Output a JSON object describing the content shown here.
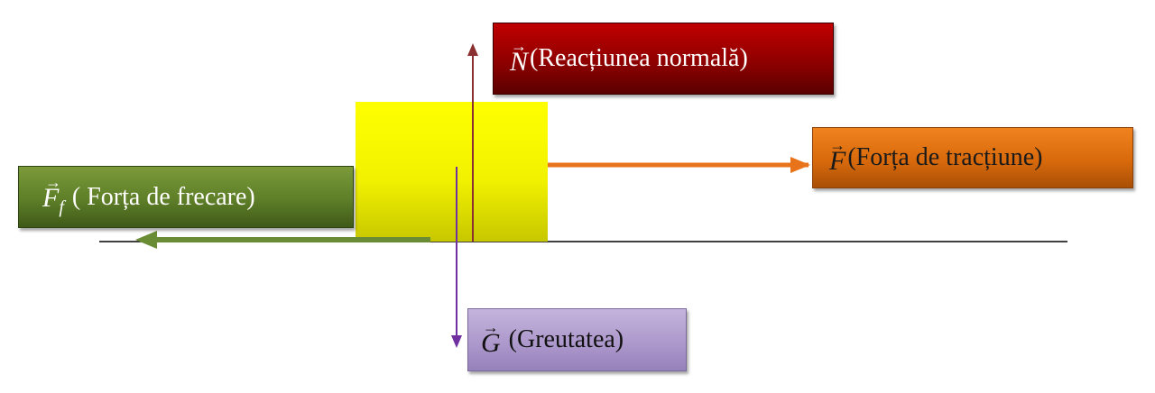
{
  "diagram": {
    "labels": {
      "normal": {
        "symbol": "N",
        "arrow": "→",
        "text": "(Reacțiunea normală)"
      },
      "traction": {
        "symbol": "F",
        "arrow": "→",
        "text": "(Forța de tracțiune)"
      },
      "friction": {
        "symbol": "F",
        "subscript": "f",
        "arrow": "→",
        "text": " ( Forța de frecare)"
      },
      "weight": {
        "symbol": "G",
        "arrow": "→",
        "text": " (Greutatea)"
      }
    },
    "colors": {
      "normal_box": "#8a0000",
      "normal_arrow": "#8b3030",
      "traction_box": "#d96a0c",
      "traction_arrow": "#e8731a",
      "friction_box": "#5e7e28",
      "friction_arrow": "#6a8c35",
      "weight_box": "#ad99cc",
      "weight_arrow": "#7030a0",
      "block": "#ffff00",
      "ground": "#000000"
    }
  }
}
